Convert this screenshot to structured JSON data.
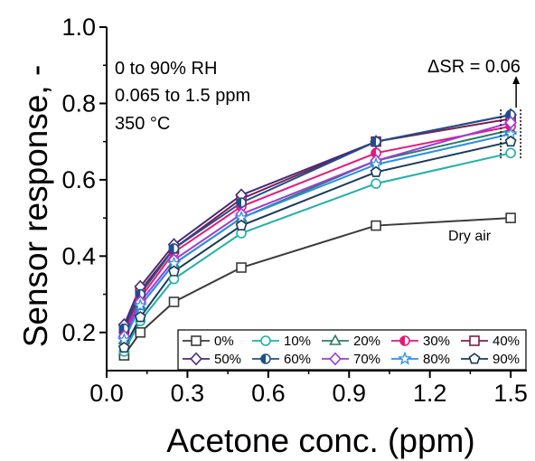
{
  "chart_data": {
    "type": "line",
    "xlabel": "Acetone conc. (ppm)",
    "ylabel": "Sensor response, -",
    "xlim": [
      0.0,
      1.56
    ],
    "ylim": [
      0.1,
      1.0
    ],
    "xticks": [
      "0.0",
      "0.3",
      "0.6",
      "0.9",
      "1.2",
      "1.5"
    ],
    "yticks": [
      "0.2",
      "0.4",
      "0.6",
      "0.8",
      "1.0"
    ],
    "x": [
      0.065,
      0.125,
      0.25,
      0.5,
      1.0,
      1.5
    ],
    "annotations": [
      "0 to 90% RH",
      "0.065 to 1.5 ppm",
      "350 °C"
    ],
    "delta_label": "ΔSR = 0.06",
    "dry_air_label": "Dry air",
    "legend_position": "bottom-right",
    "series": [
      {
        "name": "0%",
        "color": "#3a3a3a",
        "marker": "square",
        "fill": "open",
        "values": [
          0.14,
          0.2,
          0.28,
          0.37,
          0.48,
          0.5
        ]
      },
      {
        "name": "10%",
        "color": "#20b0a8",
        "marker": "circle",
        "fill": "open",
        "values": [
          0.15,
          0.23,
          0.34,
          0.46,
          0.59,
          0.67
        ]
      },
      {
        "name": "20%",
        "color": "#2e7d5e",
        "marker": "triangle",
        "fill": "open",
        "values": [
          0.18,
          0.27,
          0.38,
          0.5,
          0.65,
          0.73
        ]
      },
      {
        "name": "30%",
        "color": "#e6197a",
        "marker": "circle",
        "fill": "half",
        "values": [
          0.2,
          0.29,
          0.41,
          0.53,
          0.67,
          0.74
        ]
      },
      {
        "name": "40%",
        "color": "#7a1f4a",
        "marker": "square",
        "fill": "open",
        "values": [
          0.21,
          0.31,
          0.42,
          0.55,
          0.7,
          0.76
        ]
      },
      {
        "name": "50%",
        "color": "#4a2a7a",
        "marker": "diamond",
        "fill": "open",
        "values": [
          0.22,
          0.32,
          0.43,
          0.56,
          0.7,
          0.77
        ]
      },
      {
        "name": "60%",
        "color": "#1f4e8c",
        "marker": "circle",
        "fill": "half",
        "values": [
          0.21,
          0.3,
          0.42,
          0.54,
          0.7,
          0.77
        ]
      },
      {
        "name": "70%",
        "color": "#9b3ae0",
        "marker": "diamond",
        "fill": "open",
        "values": [
          0.19,
          0.28,
          0.39,
          0.51,
          0.65,
          0.75
        ]
      },
      {
        "name": "80%",
        "color": "#2b8fe8",
        "marker": "star",
        "fill": "open",
        "values": [
          0.18,
          0.27,
          0.38,
          0.5,
          0.64,
          0.72
        ]
      },
      {
        "name": "90%",
        "color": "#1a3a5a",
        "marker": "pentagon",
        "fill": "open",
        "values": [
          0.16,
          0.24,
          0.36,
          0.48,
          0.62,
          0.7
        ]
      }
    ]
  }
}
